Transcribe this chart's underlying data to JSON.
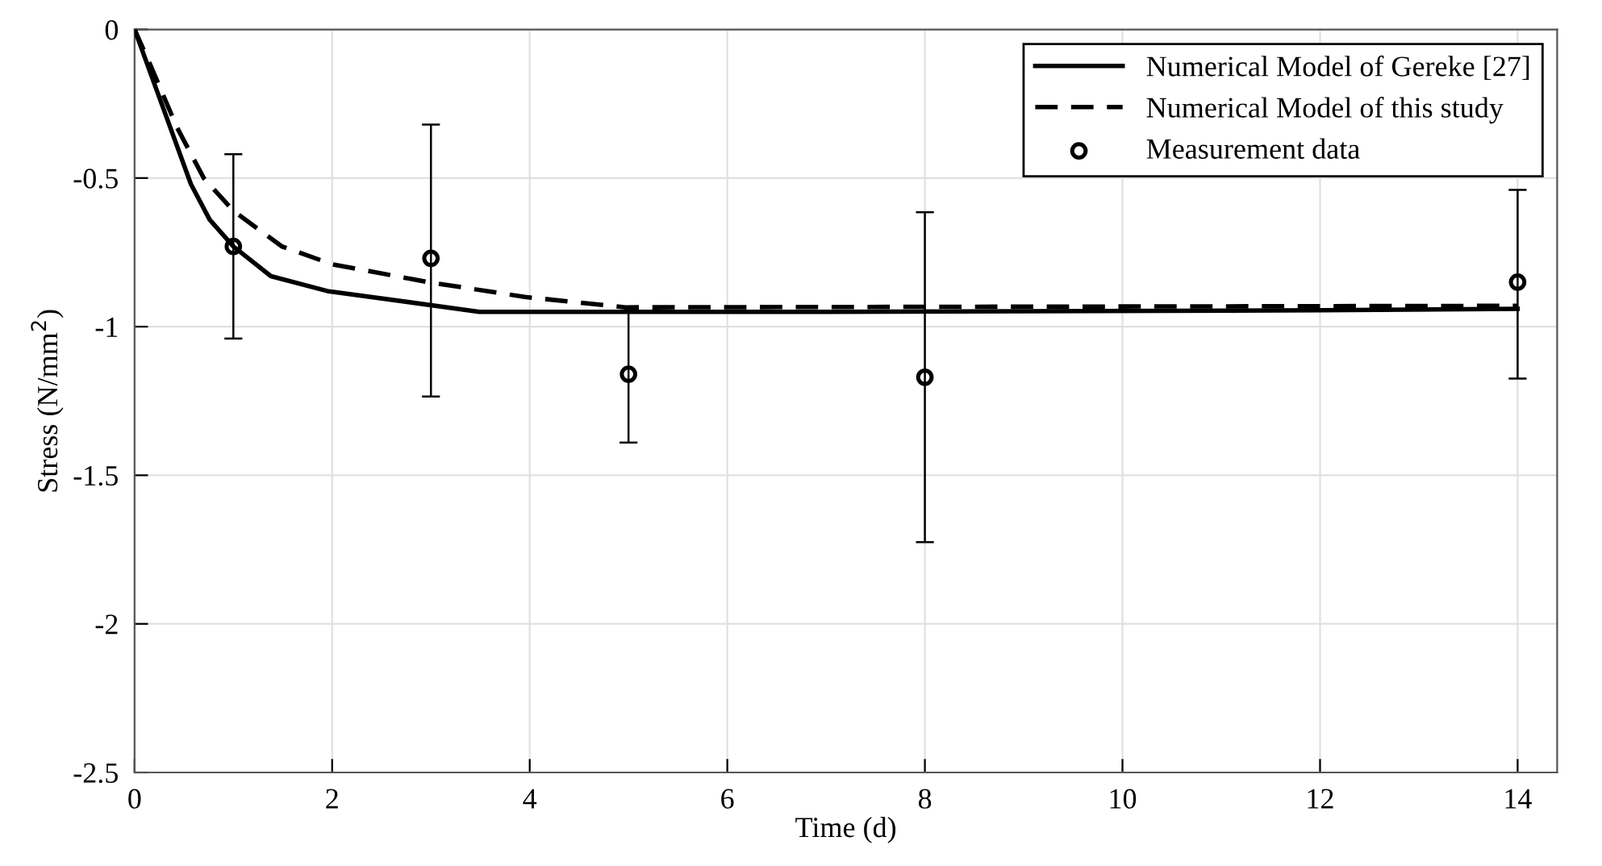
{
  "chart_data": {
    "type": "line",
    "xlabel": "Time (d)",
    "ylabel": "Stress (N/mm$^{2}$)",
    "xlim": [
      0,
      14.4
    ],
    "xticks": [
      0,
      2,
      4,
      6,
      8,
      10,
      12,
      14
    ],
    "ylim": [
      -2.5,
      0
    ],
    "yticks": [
      -2.5,
      -2,
      -1.5,
      -1,
      -0.5,
      0
    ],
    "grid": true,
    "legend": "top right",
    "series": [
      {
        "name": "Numerical Model of Gereke [27]",
        "line_style": "solid",
        "marker": "none",
        "color": "#000000",
        "x": [
          0,
          0.57,
          0.76,
          1,
          1.38,
          1.95,
          3.49,
          7,
          12,
          14
        ],
        "values": [
          0,
          -0.52,
          -0.64,
          -0.73,
          -0.83,
          -0.88,
          -0.95,
          -0.95,
          -0.945,
          -0.94
        ]
      },
      {
        "name": "Numerical Model of this study",
        "line_style": "dashed",
        "marker": "none",
        "color": "#000000",
        "x": [
          0,
          0.16,
          0.43,
          0.7,
          1,
          1.49,
          2,
          2.97,
          3.95,
          4.97,
          14
        ],
        "values": [
          0,
          -0.12,
          -0.33,
          -0.5,
          -0.61,
          -0.73,
          -0.79,
          -0.85,
          -0.9,
          -0.935,
          -0.93
        ]
      },
      {
        "name": "Measurement data",
        "type": "scatter",
        "marker": "circle",
        "color": "#000000",
        "x": [
          1,
          3,
          5,
          8,
          14
        ],
        "values": [
          -0.73,
          -0.77,
          -1.16,
          -1.17,
          -0.85
        ],
        "errors": [
          [
            -1.04,
            -0.42
          ],
          [
            -1.235,
            -0.32
          ],
          [
            -1.39,
            -0.95
          ],
          [
            -1.725,
            -0.615
          ],
          [
            -1.175,
            -0.54
          ]
        ]
      }
    ]
  }
}
